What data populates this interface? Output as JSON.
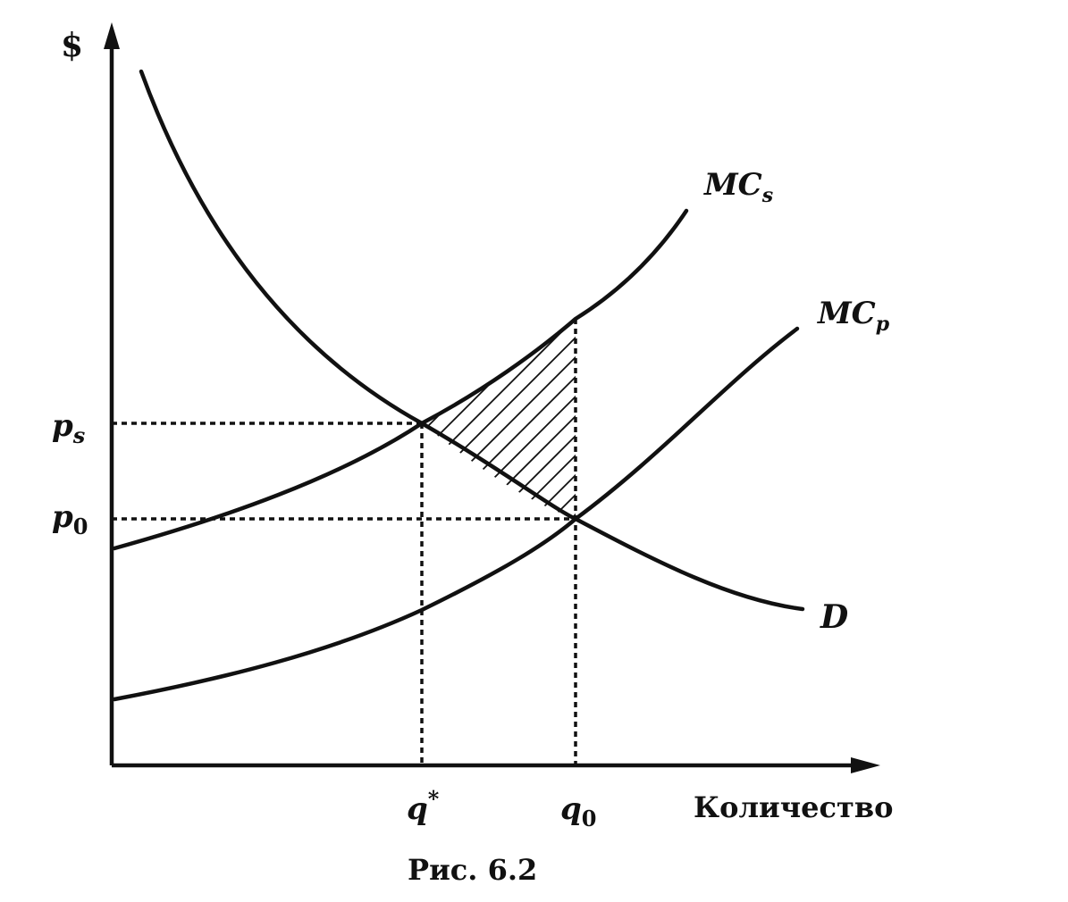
{
  "axes": {
    "y_label": "$",
    "x_label": "Количество"
  },
  "price_labels": {
    "ps_main": "p",
    "ps_sub": "s",
    "p0_main": "p",
    "p0_sub": "0"
  },
  "quantity_labels": {
    "qstar_main": "q",
    "qstar_sup": "*",
    "q0_main": "q",
    "q0_sub": "0"
  },
  "curves": {
    "mcs_main": "MC",
    "mcs_sub": "s",
    "mcp_main": "MC",
    "mcp_sub": "p",
    "d": "D"
  },
  "caption": "Рис. 6.2"
}
